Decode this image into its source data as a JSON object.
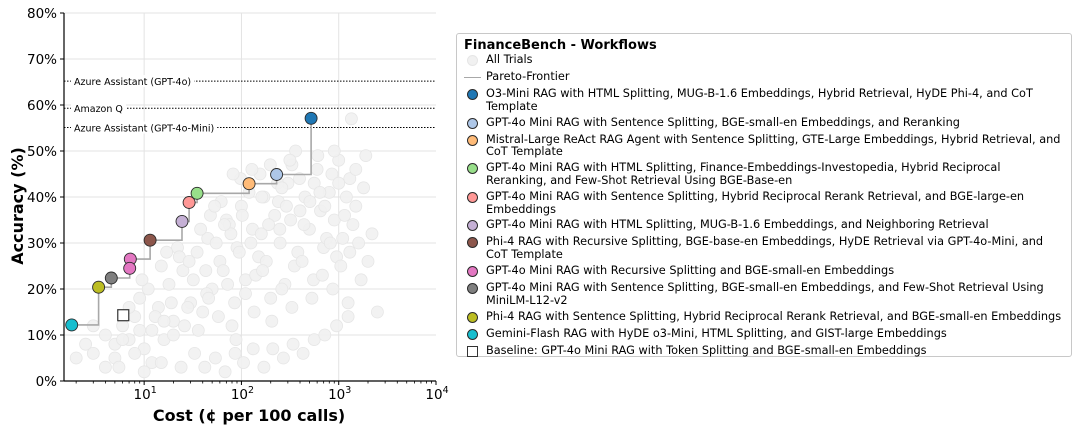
{
  "chart_data": {
    "type": "scatter",
    "xscale": "log",
    "xlim": [
      1.5,
      10000
    ],
    "ylim": [
      0,
      80
    ],
    "xlabel": "Cost (¢ per 100 calls)",
    "ylabel": "Accuracy (%)",
    "yticks": [
      "0%",
      "10%",
      "20%",
      "30%",
      "40%",
      "50%",
      "60%",
      "70%",
      "80%"
    ],
    "xticks": [
      {
        "base": "10",
        "exp": "1"
      },
      {
        "base": "10",
        "exp": "2"
      },
      {
        "base": "10",
        "exp": "3"
      },
      {
        "base": "10",
        "exp": "4"
      }
    ],
    "grid": true,
    "legend_position": "outside-right",
    "reference_lines": [
      {
        "label": "Azure Assistant (GPT-4o)",
        "y": 65.2
      },
      {
        "label": "Amazon Q",
        "y": 59.3
      },
      {
        "label": "Azure Assistant (GPT-4o-Mini)",
        "y": 55.1
      }
    ],
    "all_trials": {
      "name": "All Trials",
      "color": "#ececec",
      "points": [
        [
          2.5,
          8
        ],
        [
          3,
          6
        ],
        [
          4,
          10
        ],
        [
          5,
          5
        ],
        [
          6,
          12
        ],
        [
          7,
          9
        ],
        [
          8,
          14
        ],
        [
          9,
          18
        ],
        [
          10,
          7
        ],
        [
          12,
          11
        ],
        [
          14,
          16
        ],
        [
          16,
          9
        ],
        [
          18,
          21
        ],
        [
          20,
          13
        ],
        [
          25,
          24
        ],
        [
          30,
          17
        ],
        [
          35,
          28
        ],
        [
          40,
          15
        ],
        [
          45,
          31
        ],
        [
          50,
          20
        ],
        [
          60,
          26
        ],
        [
          70,
          35
        ],
        [
          80,
          12
        ],
        [
          90,
          29
        ],
        [
          100,
          38
        ],
        [
          110,
          22
        ],
        [
          130,
          33
        ],
        [
          150,
          27
        ],
        [
          170,
          40
        ],
        [
          200,
          18
        ],
        [
          220,
          36
        ],
        [
          250,
          30
        ],
        [
          300,
          43
        ],
        [
          350,
          25
        ],
        [
          400,
          37
        ],
        [
          500,
          33
        ],
        [
          600,
          46
        ],
        [
          700,
          29
        ],
        [
          800,
          41
        ],
        [
          900,
          35
        ],
        [
          1000,
          48
        ],
        [
          1100,
          31
        ],
        [
          1300,
          44
        ],
        [
          1500,
          38
        ],
        [
          1800,
          42
        ],
        [
          3,
          12
        ],
        [
          5,
          8
        ],
        [
          7,
          16
        ],
        [
          9,
          11
        ],
        [
          11,
          20
        ],
        [
          13,
          14
        ],
        [
          15,
          25
        ],
        [
          19,
          17
        ],
        [
          22,
          29
        ],
        [
          26,
          12
        ],
        [
          32,
          22
        ],
        [
          38,
          33
        ],
        [
          44,
          19
        ],
        [
          55,
          30
        ],
        [
          65,
          24
        ],
        [
          75,
          34
        ],
        [
          85,
          17
        ],
        [
          95,
          28
        ],
        [
          120,
          41
        ],
        [
          140,
          23
        ],
        [
          160,
          32
        ],
        [
          180,
          26
        ],
        [
          240,
          39
        ],
        [
          280,
          21
        ],
        [
          320,
          35
        ],
        [
          380,
          28
        ],
        [
          450,
          40
        ],
        [
          550,
          22
        ],
        [
          650,
          37
        ],
        [
          750,
          31
        ],
        [
          850,
          45
        ],
        [
          950,
          27
        ],
        [
          1200,
          40
        ],
        [
          1400,
          34
        ],
        [
          2,
          5
        ],
        [
          4,
          3
        ],
        [
          6,
          9
        ],
        [
          8,
          6
        ],
        [
          12,
          4
        ],
        [
          16,
          13
        ],
        [
          20,
          10
        ],
        [
          28,
          16
        ],
        [
          36,
          11
        ],
        [
          46,
          18
        ],
        [
          58,
          14
        ],
        [
          72,
          21
        ],
        [
          88,
          9
        ],
        [
          110,
          19
        ],
        [
          135,
          15
        ],
        [
          165,
          24
        ],
        [
          205,
          13
        ],
        [
          260,
          20
        ],
        [
          330,
          16
        ],
        [
          420,
          26
        ],
        [
          530,
          18
        ],
        [
          680,
          23
        ],
        [
          870,
          20
        ],
        [
          1050,
          25
        ],
        [
          1250,
          17
        ],
        [
          1600,
          30
        ],
        [
          48,
          36
        ],
        [
          62,
          39
        ],
        [
          78,
          32
        ],
        [
          98,
          44
        ],
        [
          125,
          30
        ],
        [
          155,
          45
        ],
        [
          190,
          34
        ],
        [
          235,
          43
        ],
        [
          290,
          38
        ],
        [
          360,
          50
        ],
        [
          440,
          34
        ],
        [
          560,
          43
        ],
        [
          720,
          38
        ],
        [
          900,
          50
        ],
        [
          1150,
          36
        ],
        [
          1500,
          46
        ],
        [
          1900,
          49
        ],
        [
          5.5,
          3
        ],
        [
          10,
          2
        ],
        [
          15,
          4
        ],
        [
          24,
          3
        ],
        [
          33,
          6
        ],
        [
          42,
          3
        ],
        [
          54,
          5
        ],
        [
          68,
          2
        ],
        [
          86,
          6
        ],
        [
          105,
          4
        ],
        [
          132,
          7
        ],
        [
          170,
          3
        ],
        [
          210,
          7
        ],
        [
          270,
          5
        ],
        [
          340,
          8
        ],
        [
          430,
          6
        ],
        [
          560,
          9
        ],
        [
          720,
          10
        ],
        [
          950,
          12
        ],
        [
          1250,
          14
        ],
        [
          1700,
          22
        ],
        [
          2000,
          26
        ],
        [
          2200,
          32
        ],
        [
          260,
          42
        ],
        [
          330,
          47
        ],
        [
          610,
          49
        ],
        [
          1300,
          28
        ],
        [
          2500,
          15
        ],
        [
          9.5,
          22
        ],
        [
          17,
          28
        ],
        [
          23,
          27
        ],
        [
          29,
          26
        ],
        [
          43,
          24
        ],
        [
          53,
          38
        ],
        [
          67,
          34
        ],
        [
          82,
          45
        ],
        [
          102,
          36
        ],
        [
          128,
          46
        ],
        [
          162,
          40
        ],
        [
          198,
          47
        ],
        [
          248,
          33
        ],
        [
          315,
          48
        ],
        [
          395,
          44
        ],
        [
          505,
          39
        ],
        [
          640,
          41
        ],
        [
          820,
          30
        ],
        [
          1000,
          43
        ],
        [
          1350,
          57
        ]
      ]
    },
    "pareto_frontier": {
      "name": "Pareto-Frontier",
      "color": "#a8a8a8",
      "points": [
        [
          1.8,
          12.2
        ],
        [
          3.4,
          20.4
        ],
        [
          4.6,
          22.4
        ],
        [
          7.1,
          24.5
        ],
        [
          7.2,
          26.5
        ],
        [
          11.5,
          30.6
        ],
        [
          24.5,
          34.7
        ],
        [
          29,
          38.8
        ],
        [
          35,
          40.8
        ],
        [
          120,
          42.9
        ],
        [
          230,
          44.9
        ],
        [
          520,
          57.1
        ]
      ]
    },
    "baseline": {
      "name": "Baseline: GPT-4o Mini RAG with Token Splitting and BGE-small-en Embeddings",
      "x": 6.1,
      "y": 14.3
    },
    "series": [
      {
        "name": "O3-Mini RAG with HTML Splitting, MUG-B-1.6 Embeddings, Hybrid Retrieval, HyDE Phi-4, and CoT Template",
        "color": "#1f77b4",
        "x": 520,
        "y": 57.1
      },
      {
        "name": "GPT-4o Mini RAG with Sentence Splitting, BGE-small-en Embeddings, and Reranking",
        "color": "#aec7e8",
        "x": 230,
        "y": 44.9
      },
      {
        "name": "Mistral-Large ReAct RAG Agent with Sentence Splitting, GTE-Large Embeddings, Hybrid Retrieval, and CoT Template",
        "color": "#ffbb78",
        "x": 120,
        "y": 42.9
      },
      {
        "name": "GPT-4o Mini RAG with HTML Splitting, Finance-Embeddings-Investopedia, Hybrid Reciprocal Reranking, and Few-Shot Retrieval Using BGE-Base-en",
        "color": "#98df8a",
        "x": 35,
        "y": 40.8
      },
      {
        "name": "GPT-4o Mini RAG with Sentence Splitting, Hybrid Reciprocal Rerank Retrieval, and BGE-large-en Embeddings",
        "color": "#ff9896",
        "x": 29,
        "y": 38.8
      },
      {
        "name": "GPT-4o Mini RAG with HTML Splitting, MUG-B-1.6 Embeddings, and Neighboring Retrieval",
        "color": "#c5b0d5",
        "x": 24.5,
        "y": 34.7
      },
      {
        "name": "Phi-4 RAG with Recursive Splitting, BGE-base-en Embeddings, HyDE Retrieval via GPT-4o-Mini, and CoT Template",
        "color": "#8c564b",
        "x": 11.5,
        "y": 30.6
      },
      {
        "name": "GPT-4o Mini RAG with Recursive Splitting and BGE-small-en Embeddings",
        "color": "#e377c2",
        "points": [
          [
            7.2,
            26.5
          ],
          [
            7.1,
            24.5
          ]
        ]
      },
      {
        "name": "GPT-4o Mini RAG with Sentence Splitting, BGE-small-en Embeddings, and Few-Shot Retrieval Using MiniLM-L12-v2",
        "color": "#7f7f7f",
        "x": 4.6,
        "y": 22.4
      },
      {
        "name": "Phi-4 RAG with Sentence Splitting, Hybrid Reciprocal Rerank Retrieval, and BGE-small-en Embeddings",
        "color": "#bcbd22",
        "x": 3.4,
        "y": 20.4
      },
      {
        "name": "Gemini-Flash RAG with HyDE o3-Mini, HTML Splitting, and GIST-large Embeddings",
        "color": "#17becf",
        "x": 1.8,
        "y": 12.2
      }
    ]
  },
  "legend": {
    "title": "FinanceBench - Workflows",
    "items": [
      {
        "label": "All Trials",
        "marker": "trial"
      },
      {
        "label": "Pareto-Frontier",
        "marker": "line"
      },
      {
        "label": "O3-Mini RAG with HTML Splitting, MUG-B-1.6 Embeddings, Hybrid Retrieval, HyDE Phi-4, and CoT Template",
        "marker": "circle",
        "color": "#1f77b4"
      },
      {
        "label": "GPT-4o Mini RAG with Sentence Splitting, BGE-small-en Embeddings, and Reranking",
        "marker": "circle",
        "color": "#aec7e8"
      },
      {
        "label": "Mistral-Large ReAct RAG Agent with Sentence Splitting, GTE-Large Embeddings, Hybrid Retrieval, and CoT Template",
        "marker": "circle",
        "color": "#ffbb78"
      },
      {
        "label": "GPT-4o Mini RAG with HTML Splitting, Finance-Embeddings-Investopedia, Hybrid Reciprocal Reranking, and Few-Shot Retrieval Using BGE-Base-en",
        "marker": "circle",
        "color": "#98df8a"
      },
      {
        "label": "GPT-4o Mini RAG with Sentence Splitting, Hybrid Reciprocal Rerank Retrieval, and BGE-large-en Embeddings",
        "marker": "circle",
        "color": "#ff9896"
      },
      {
        "label": "GPT-4o Mini RAG with HTML Splitting, MUG-B-1.6 Embeddings, and Neighboring Retrieval",
        "marker": "circle",
        "color": "#c5b0d5"
      },
      {
        "label": "Phi-4 RAG with Recursive Splitting, BGE-base-en Embeddings, HyDE Retrieval via GPT-4o-Mini, and CoT Template",
        "marker": "circle",
        "color": "#8c564b"
      },
      {
        "label": "GPT-4o Mini RAG with Recursive Splitting and BGE-small-en Embeddings",
        "marker": "circle",
        "color": "#e377c2"
      },
      {
        "label": "GPT-4o Mini RAG with Sentence Splitting, BGE-small-en Embeddings, and Few-Shot Retrieval Using MiniLM-L12-v2",
        "marker": "circle",
        "color": "#7f7f7f"
      },
      {
        "label": "Phi-4 RAG with Sentence Splitting, Hybrid Reciprocal Rerank Retrieval, and BGE-small-en Embeddings",
        "marker": "circle",
        "color": "#bcbd22"
      },
      {
        "label": "Gemini-Flash RAG with HyDE o3-Mini, HTML Splitting, and GIST-large Embeddings",
        "marker": "circle",
        "color": "#17becf"
      },
      {
        "label": "Baseline: GPT-4o Mini RAG with Token Splitting and BGE-small-en Embeddings",
        "marker": "square"
      }
    ]
  }
}
